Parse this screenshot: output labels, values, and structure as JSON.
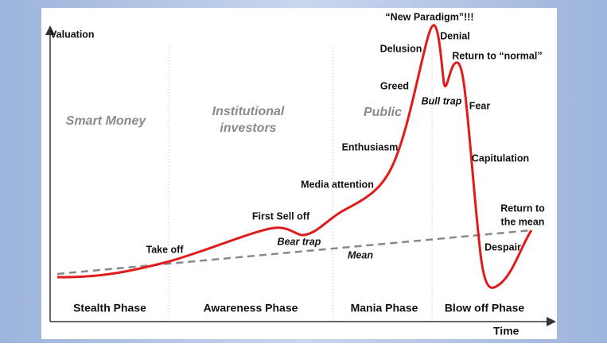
{
  "axes": {
    "y_label": "Valuation",
    "x_label": "Time"
  },
  "investors": [
    "Smart Money",
    "Institutional investors",
    "Public"
  ],
  "phases": [
    "Stealth Phase",
    "Awareness Phase",
    "Mania Phase",
    "Blow off Phase"
  ],
  "annotations": {
    "take_off": "Take off",
    "first_sell_off": "First Sell off",
    "bear_trap": "Bear trap",
    "mean": "Mean",
    "media_attention": "Media attention",
    "enthusiasm": "Enthusiasm",
    "greed": "Greed",
    "delusion": "Delusion",
    "new_paradigm": "“New Paradigm”!!!",
    "denial": "Denial",
    "return_to_normal": "Return to “normal”",
    "bull_trap": "Bull trap",
    "fear": "Fear",
    "capitulation": "Capitulation",
    "return_to_mean": [
      "Return to",
      "the mean"
    ],
    "despair": "Despair"
  }
}
